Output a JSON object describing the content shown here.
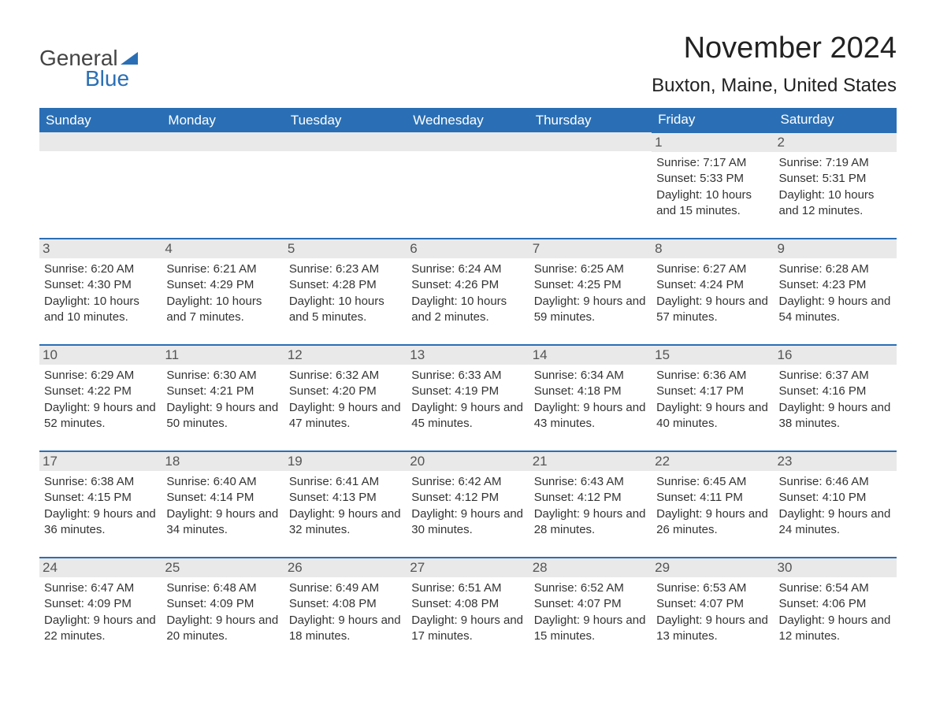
{
  "brand": {
    "part1": "General",
    "part2": "Blue"
  },
  "title": "November 2024",
  "location": "Buxton, Maine, United States",
  "columns": [
    "Sunday",
    "Monday",
    "Tuesday",
    "Wednesday",
    "Thursday",
    "Friday",
    "Saturday"
  ],
  "colors": {
    "header_bg": "#2a6fb5",
    "header_text": "#ffffff",
    "daynum_bg": "#e9e9e9",
    "row_border": "#2a6fb5",
    "body_text": "#333333",
    "logo_blue": "#2a6fb5",
    "logo_dark": "#444444",
    "background": "#ffffff"
  },
  "typography": {
    "title_fontsize": 38,
    "location_fontsize": 24,
    "column_header_fontsize": 17,
    "daynum_fontsize": 17,
    "body_fontsize": 15,
    "font_family": "Arial"
  },
  "weeks": [
    [
      null,
      null,
      null,
      null,
      null,
      {
        "n": "1",
        "sunrise": "7:17 AM",
        "sunset": "5:33 PM",
        "daylight": "10 hours and 15 minutes."
      },
      {
        "n": "2",
        "sunrise": "7:19 AM",
        "sunset": "5:31 PM",
        "daylight": "10 hours and 12 minutes."
      }
    ],
    [
      {
        "n": "3",
        "sunrise": "6:20 AM",
        "sunset": "4:30 PM",
        "daylight": "10 hours and 10 minutes."
      },
      {
        "n": "4",
        "sunrise": "6:21 AM",
        "sunset": "4:29 PM",
        "daylight": "10 hours and 7 minutes."
      },
      {
        "n": "5",
        "sunrise": "6:23 AM",
        "sunset": "4:28 PM",
        "daylight": "10 hours and 5 minutes."
      },
      {
        "n": "6",
        "sunrise": "6:24 AM",
        "sunset": "4:26 PM",
        "daylight": "10 hours and 2 minutes."
      },
      {
        "n": "7",
        "sunrise": "6:25 AM",
        "sunset": "4:25 PM",
        "daylight": "9 hours and 59 minutes."
      },
      {
        "n": "8",
        "sunrise": "6:27 AM",
        "sunset": "4:24 PM",
        "daylight": "9 hours and 57 minutes."
      },
      {
        "n": "9",
        "sunrise": "6:28 AM",
        "sunset": "4:23 PM",
        "daylight": "9 hours and 54 minutes."
      }
    ],
    [
      {
        "n": "10",
        "sunrise": "6:29 AM",
        "sunset": "4:22 PM",
        "daylight": "9 hours and 52 minutes."
      },
      {
        "n": "11",
        "sunrise": "6:30 AM",
        "sunset": "4:21 PM",
        "daylight": "9 hours and 50 minutes."
      },
      {
        "n": "12",
        "sunrise": "6:32 AM",
        "sunset": "4:20 PM",
        "daylight": "9 hours and 47 minutes."
      },
      {
        "n": "13",
        "sunrise": "6:33 AM",
        "sunset": "4:19 PM",
        "daylight": "9 hours and 45 minutes."
      },
      {
        "n": "14",
        "sunrise": "6:34 AM",
        "sunset": "4:18 PM",
        "daylight": "9 hours and 43 minutes."
      },
      {
        "n": "15",
        "sunrise": "6:36 AM",
        "sunset": "4:17 PM",
        "daylight": "9 hours and 40 minutes."
      },
      {
        "n": "16",
        "sunrise": "6:37 AM",
        "sunset": "4:16 PM",
        "daylight": "9 hours and 38 minutes."
      }
    ],
    [
      {
        "n": "17",
        "sunrise": "6:38 AM",
        "sunset": "4:15 PM",
        "daylight": "9 hours and 36 minutes."
      },
      {
        "n": "18",
        "sunrise": "6:40 AM",
        "sunset": "4:14 PM",
        "daylight": "9 hours and 34 minutes."
      },
      {
        "n": "19",
        "sunrise": "6:41 AM",
        "sunset": "4:13 PM",
        "daylight": "9 hours and 32 minutes."
      },
      {
        "n": "20",
        "sunrise": "6:42 AM",
        "sunset": "4:12 PM",
        "daylight": "9 hours and 30 minutes."
      },
      {
        "n": "21",
        "sunrise": "6:43 AM",
        "sunset": "4:12 PM",
        "daylight": "9 hours and 28 minutes."
      },
      {
        "n": "22",
        "sunrise": "6:45 AM",
        "sunset": "4:11 PM",
        "daylight": "9 hours and 26 minutes."
      },
      {
        "n": "23",
        "sunrise": "6:46 AM",
        "sunset": "4:10 PM",
        "daylight": "9 hours and 24 minutes."
      }
    ],
    [
      {
        "n": "24",
        "sunrise": "6:47 AM",
        "sunset": "4:09 PM",
        "daylight": "9 hours and 22 minutes."
      },
      {
        "n": "25",
        "sunrise": "6:48 AM",
        "sunset": "4:09 PM",
        "daylight": "9 hours and 20 minutes."
      },
      {
        "n": "26",
        "sunrise": "6:49 AM",
        "sunset": "4:08 PM",
        "daylight": "9 hours and 18 minutes."
      },
      {
        "n": "27",
        "sunrise": "6:51 AM",
        "sunset": "4:08 PM",
        "daylight": "9 hours and 17 minutes."
      },
      {
        "n": "28",
        "sunrise": "6:52 AM",
        "sunset": "4:07 PM",
        "daylight": "9 hours and 15 minutes."
      },
      {
        "n": "29",
        "sunrise": "6:53 AM",
        "sunset": "4:07 PM",
        "daylight": "9 hours and 13 minutes."
      },
      {
        "n": "30",
        "sunrise": "6:54 AM",
        "sunset": "4:06 PM",
        "daylight": "9 hours and 12 minutes."
      }
    ]
  ]
}
